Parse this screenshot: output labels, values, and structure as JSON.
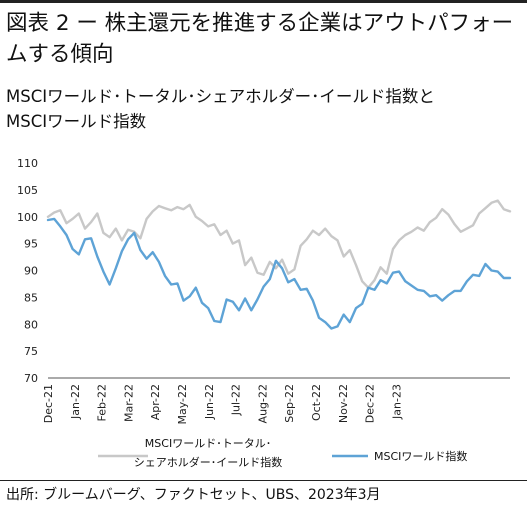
{
  "header": {
    "title": "図表 2 ー 株主還元を推進する企業はアウトパフォームする傾向",
    "subtitle_lines": [
      "MSCIワールド･トータル･シェアホルダー･イールド指数と",
      "MSCIワールド指数"
    ]
  },
  "footer": {
    "source": "出所: ブルームバーグ、ファクトセット、UBS、2023年3月"
  },
  "colors": {
    "shareholder_yield": "#c8c8c8",
    "world": "#5ea3d6"
  },
  "chart_data": {
    "type": "line",
    "title": "",
    "xlabel": "",
    "ylabel": "",
    "ylim": [
      70,
      110
    ],
    "yticks": [
      70,
      75,
      80,
      85,
      90,
      95,
      100,
      105,
      110
    ],
    "grid": "none",
    "legend_position": "bottom",
    "x_start": "Dec-21",
    "x_step": "weekly",
    "x_tick_labels": [
      "Dec-21",
      "Jan-22",
      "Feb-22",
      "Mar-22",
      "Apr-22",
      "May-22",
      "Jun-22",
      "Jul-22",
      "Aug-22",
      "Sep-22",
      "Oct-22",
      "Nov-22",
      "Dec-22",
      "Jan-23"
    ],
    "series": [
      {
        "name": "MSCIワールド･トータル･シェアホルダー･イールド指数",
        "legend_lines": [
          "MSCIワールド･トータル･",
          "シェアホルダー･イールド指数"
        ],
        "values": [
          100,
          100.8,
          101.2,
          98.8,
          99.6,
          100.6,
          97.8,
          99,
          100.6,
          97,
          96.2,
          97.8,
          95.6,
          97.6,
          97.2,
          96,
          99.6,
          101,
          102,
          101.6,
          101.2,
          101.8,
          101.4,
          102.2,
          100,
          99.2,
          98.2,
          98.6,
          96.6,
          97.4,
          95,
          95.6,
          91,
          92.4,
          89.6,
          89.2,
          91.6,
          90.4,
          92,
          89.4,
          90.2,
          94.6,
          95.8,
          97.4,
          96.6,
          97.8,
          96.4,
          95.6,
          92.6,
          93.8,
          91,
          88,
          86.8,
          88.2,
          90.6,
          89.4,
          94,
          95.6,
          96.6,
          97.2,
          98,
          97.4,
          99,
          99.8,
          101.4,
          100.4,
          98.6,
          97.2,
          97.8,
          98.4,
          100.6,
          101.6,
          102.6,
          103,
          101.4,
          101
        ]
      },
      {
        "name": "MSCIワールド指数",
        "legend_lines": [
          "MSCIワールド指数"
        ],
        "values": [
          99.4,
          99.6,
          98.2,
          96.6,
          94,
          93,
          95.8,
          96,
          92.6,
          89.8,
          87.4,
          90.4,
          93.6,
          95.8,
          97,
          93.8,
          92.2,
          93.4,
          91.6,
          89,
          87.4,
          87.6,
          84.4,
          85.2,
          86.8,
          84,
          83,
          80.6,
          80.4,
          84.6,
          84.2,
          82.6,
          84.8,
          82.6,
          84.6,
          87,
          88.4,
          91.8,
          90.4,
          87.8,
          88.4,
          86.4,
          86.6,
          84.4,
          81.2,
          80.4,
          79.2,
          79.6,
          81.8,
          80.4,
          83,
          83.8,
          86.8,
          86.4,
          88.2,
          87.6,
          89.6,
          89.8,
          88,
          87.2,
          86.4,
          86.2,
          85.2,
          85.4,
          84.4,
          85.4,
          86.2,
          86.2,
          88,
          89.2,
          89,
          91.2,
          90,
          89.8,
          88.6,
          88.6
        ]
      }
    ]
  }
}
